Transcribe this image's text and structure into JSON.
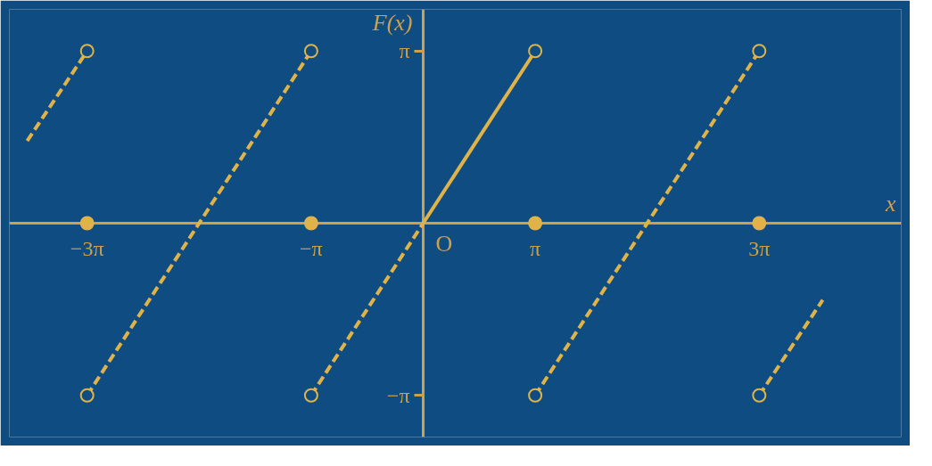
{
  "chart_data": {
    "type": "line",
    "xlabel": "x",
    "ylabel": "F(x)",
    "xlim": [
      -11.6,
      13.4
    ],
    "ylim": [
      -3.9,
      3.9
    ],
    "xticks": [
      {
        "value": -9.42,
        "label": "−3π"
      },
      {
        "value": -3.14,
        "label": "−π"
      },
      {
        "value": 3.14,
        "label": "π"
      },
      {
        "value": 9.42,
        "label": "3π"
      }
    ],
    "yticks": [
      {
        "value": -3.14,
        "label": "−π"
      },
      {
        "value": 3.14,
        "label": "π"
      }
    ],
    "annotations": [
      {
        "text": "O",
        "x": 0,
        "y": 0
      }
    ],
    "grid": false,
    "series": [
      {
        "line_style": "dashed",
        "color": "#e0b348",
        "x": [
          -11.1,
          -9.42
        ],
        "values": [
          1.5,
          3.14
        ]
      },
      {
        "line_style": "dashed",
        "color": "#e0b348",
        "x": [
          -9.42,
          -3.14
        ],
        "values": [
          -3.14,
          3.14
        ]
      },
      {
        "line_style": "dashed",
        "color": "#e0b348",
        "x": [
          -3.14,
          0
        ],
        "values": [
          -3.14,
          0
        ]
      },
      {
        "line_style": "solid",
        "color": "#e0b348",
        "x": [
          0,
          3.14
        ],
        "values": [
          0,
          3.14
        ]
      },
      {
        "line_style": "dashed",
        "color": "#e0b348",
        "x": [
          3.14,
          9.42
        ],
        "values": [
          -3.14,
          3.14
        ]
      },
      {
        "line_style": "dashed",
        "color": "#e0b348",
        "x": [
          9.42,
          11.2
        ],
        "values": [
          -3.14,
          -1.4
        ]
      },
      {
        "type": "scatter",
        "marker": "circle",
        "color": "#e0b348",
        "x": [
          -9.42,
          -3.14,
          3.14,
          9.42
        ],
        "values": [
          0,
          0,
          0,
          0
        ]
      },
      {
        "type": "scatter",
        "marker": "circle",
        "color": "#e0b348",
        "x": [
          -9.42,
          -9.42,
          -3.14,
          -3.14,
          3.14,
          3.14,
          9.42,
          9.42
        ],
        "values": [
          3.14,
          -3.14,
          3.14,
          -3.14,
          3.14,
          -3.14,
          3.14,
          -3.14
        ]
      }
    ]
  }
}
